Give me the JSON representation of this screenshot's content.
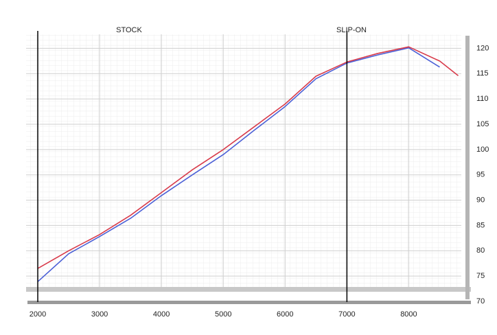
{
  "chart_data": {
    "type": "line",
    "x": [
      2000,
      2500,
      3000,
      3500,
      4000,
      4500,
      5000,
      5500,
      6000,
      6500,
      7000,
      7500,
      8000,
      8500,
      8800
    ],
    "series": [
      {
        "name": "STOCK",
        "color": "#4a5fd6",
        "values": [
          73.9,
          79.4,
          82.8,
          86.4,
          90.9,
          95.0,
          99.0,
          103.8,
          108.5,
          114.0,
          117.1,
          118.7,
          120.1,
          116.3,
          null
        ]
      },
      {
        "name": "SLIP-ON",
        "color": "#d83a4a",
        "values": [
          76.5,
          80.0,
          83.2,
          87.0,
          91.5,
          96.0,
          100.0,
          104.5,
          109.0,
          114.5,
          117.3,
          119.0,
          120.3,
          117.5,
          114.6
        ]
      }
    ],
    "vlines": [
      2000,
      7000
    ],
    "xlim": [
      1800,
      8850
    ],
    "xticks": [
      2000,
      3000,
      4000,
      5000,
      6000,
      7000,
      8000
    ],
    "ylim": [
      70,
      122.5
    ],
    "yticks": [
      70,
      75,
      80,
      85,
      90,
      95,
      100,
      105,
      110,
      115,
      120
    ],
    "grid": true
  }
}
